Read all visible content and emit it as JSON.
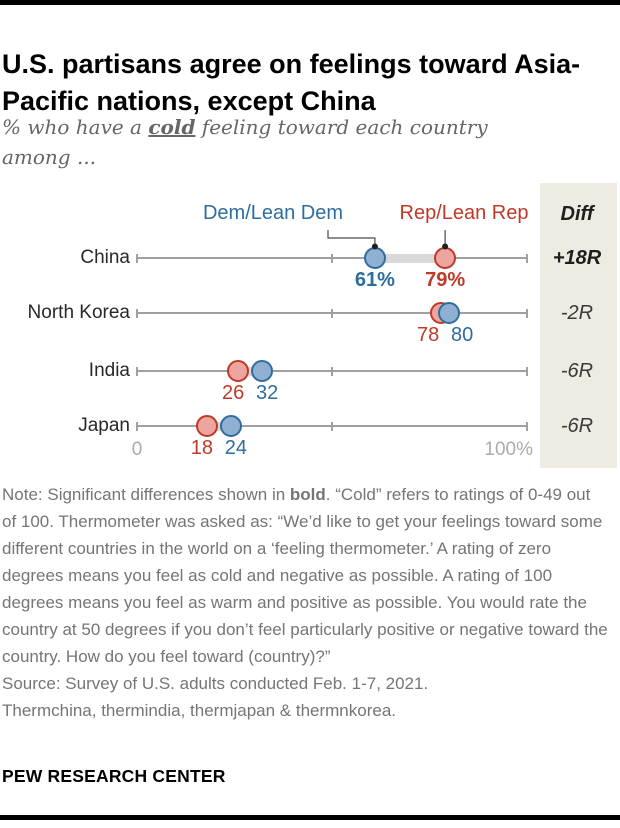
{
  "page": {
    "title": "U.S. partisans agree on feelings toward Asia-Pacific nations, except China",
    "subtitle": {
      "prefix": "% who have a ",
      "emphasis": "cold",
      "suffix": " feeling toward each country",
      "line2": "among ..."
    },
    "note": {
      "prefix": "Note: Significant differences shown in ",
      "bold_word": "bold",
      "suffix": ". “Cold” refers to ratings of 0-49 out of 100. Thermometer was asked as: “We’d like to get your feelings toward some different countries in the world on a ‘feeling thermometer.’ A rating of zero degrees means you feel as cold and negative as possible. A rating of 100 degrees means you feel as warm and positive as possible. You would rate the country at 50 degrees if you don’t feel particularly positive or negative toward the country. How do you feel toward (country)?”"
    },
    "source": [
      "Source: Survey of U.S. adults conducted Feb. 1-7, 2021.",
      "Thermchina, thermindia, thermjapan & thermnkorea."
    ],
    "footer": "PEW RESEARCH CENTER"
  },
  "chart_data": {
    "type": "scatter",
    "subtype": "dot-plot",
    "title": "% who have a cold feeling toward each country among ...",
    "axis": {
      "min": 0,
      "max": 100,
      "ticks": [
        0,
        50,
        100
      ],
      "tick_labels": [
        "0",
        "100%"
      ]
    },
    "legend": [
      {
        "label": "Dem/Lean Dem",
        "color": "#2E6D9F"
      },
      {
        "label": "Rep/Lean Rep",
        "color": "#BF3927"
      }
    ],
    "diff_header": "Diff",
    "rows": [
      {
        "country": "China",
        "dem": 61,
        "rep": 79,
        "dem_label": "61%",
        "rep_label": "79%",
        "diff": "+18R",
        "significant": true
      },
      {
        "country": "North Korea",
        "dem": 80,
        "rep": 78,
        "dem_label": "80",
        "rep_label": "78",
        "diff": "-2R",
        "significant": false
      },
      {
        "country": "India",
        "dem": 32,
        "rep": 26,
        "dem_label": "32",
        "rep_label": "26",
        "diff": "-6R",
        "significant": false
      },
      {
        "country": "Japan",
        "dem": 24,
        "rep": 18,
        "dem_label": "24",
        "rep_label": "18",
        "diff": "-6R",
        "significant": false
      }
    ],
    "colors": {
      "dem": "#2E6D9F",
      "dem_fill": "#8FB0D3",
      "rep": "#BF3927",
      "rep_fill": "#EDA69F",
      "gap_bar": "#D9D9D9",
      "axis": "#A0A0A0",
      "panel": "#EDEBE2"
    }
  }
}
